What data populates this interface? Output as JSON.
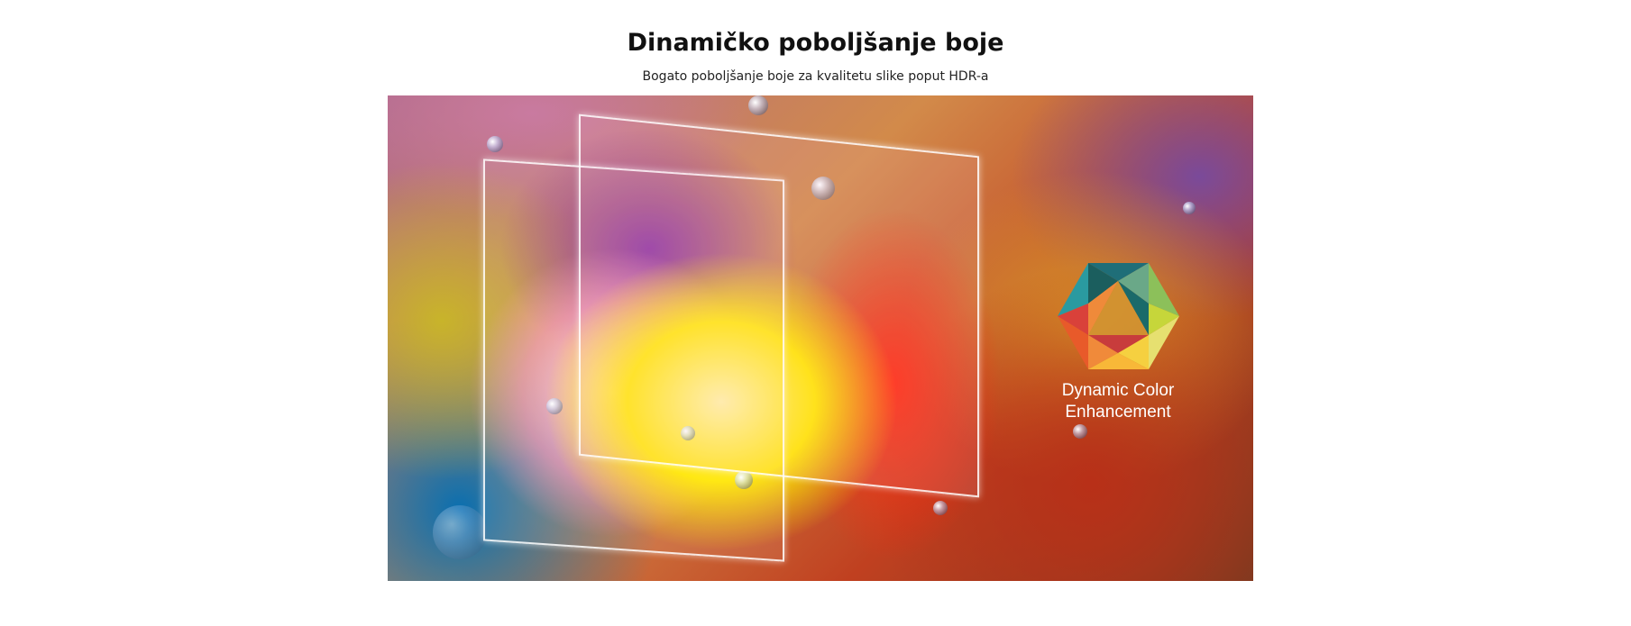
{
  "header": {
    "title": "Dinamičko poboljšanje boje",
    "subtitle": "Bogato poboljšanje boje za kvalitetu slike poput HDR-a"
  },
  "hero": {
    "logo_text_line1": "Dynamic Color",
    "logo_text_line2": "Enhancement",
    "logo_icon": "hexagon-color-triangle-icon"
  }
}
